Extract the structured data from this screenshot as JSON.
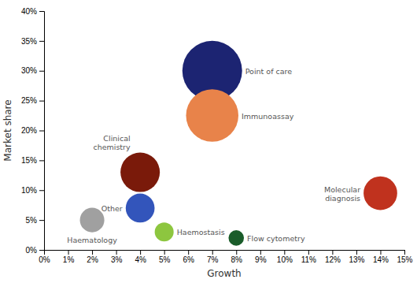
{
  "chart_data": {
    "type": "bubble",
    "x_label": "Growth",
    "y_label": "Market share",
    "labels": [
      "Point of care",
      "Immunoassay",
      "Clinical\nchemistry",
      "Other",
      "Haematology",
      "Haemostasis",
      "Flow cytometry",
      "Molecular\ndiagnosis"
    ],
    "x": [
      0.07,
      0.07,
      0.04,
      0.04,
      0.02,
      0.05,
      0.08,
      0.14
    ],
    "values": [
      0.3,
      0.225,
      0.13,
      0.07,
      0.05,
      0.03,
      0.02,
      0.095
    ],
    "sizes": [
      30,
      23,
      13,
      7,
      5,
      3,
      2,
      9.5
    ],
    "colors": [
      "#1c2472",
      "#e8834a",
      "#7a1a0a",
      "#3355bb",
      "#a0a0a0",
      "#8dc63f",
      "#1a5c2a",
      "#c0321e"
    ],
    "xlim": [
      0.0,
      0.15
    ],
    "ylim": [
      0.0,
      0.4
    ],
    "xticks": [
      {
        "value": 0.0,
        "label": "0%"
      },
      {
        "value": 0.01,
        "label": "1%"
      },
      {
        "value": 0.02,
        "label": "2%"
      },
      {
        "value": 0.03,
        "label": "3%"
      },
      {
        "value": 0.04,
        "label": "4%"
      },
      {
        "value": 0.05,
        "label": "5%"
      },
      {
        "value": 0.06,
        "label": "6%"
      },
      {
        "value": 0.07,
        "label": "7%"
      },
      {
        "value": 0.08,
        "label": "8%"
      },
      {
        "value": 0.09,
        "label": "9%"
      },
      {
        "value": 0.1,
        "label": "10%"
      },
      {
        "value": 0.11,
        "label": "11%"
      },
      {
        "value": 0.12,
        "label": "12%"
      },
      {
        "value": 0.13,
        "label": "13%"
      },
      {
        "value": 0.14,
        "label": "14%"
      },
      {
        "value": 0.15,
        "label": "15%"
      }
    ],
    "yticks": [
      {
        "value": 0.0,
        "label": "0%"
      },
      {
        "value": 0.05,
        "label": "5%"
      },
      {
        "value": 0.1,
        "label": "10%"
      },
      {
        "value": 0.15,
        "label": "15%"
      },
      {
        "value": 0.2,
        "label": "20%"
      },
      {
        "value": 0.25,
        "label": "25%"
      },
      {
        "value": 0.3,
        "label": "30%"
      },
      {
        "value": 0.35,
        "label": "35%"
      },
      {
        "value": 0.4,
        "label": "40%"
      }
    ],
    "grid": false
  }
}
